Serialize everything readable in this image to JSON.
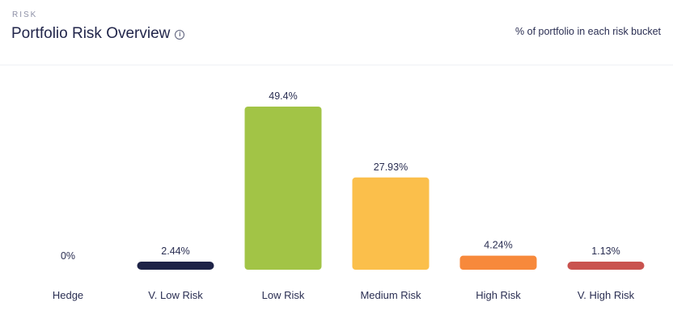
{
  "header": {
    "eyebrow": "RISK",
    "title": "Portfolio Risk Overview",
    "info_icon": "info-icon",
    "subtitle": "% of portfolio in each risk bucket"
  },
  "chart_data": {
    "type": "bar",
    "title": "",
    "xlabel": "",
    "ylabel": "",
    "ylim": [
      0,
      49.4
    ],
    "grid": false,
    "categories": [
      "Hedge",
      "V. Low Risk",
      "Low Risk",
      "Medium Risk",
      "High Risk",
      "V. High Risk"
    ],
    "values": [
      0,
      2.44,
      49.4,
      27.93,
      4.24,
      1.13
    ],
    "data_labels": [
      "0%",
      "2.44%",
      "49.4%",
      "27.93%",
      "4.24%",
      "1.13%"
    ],
    "colors": [
      "#1e2347",
      "#1e2347",
      "#a2c446",
      "#fbbf4b",
      "#f7893b",
      "#c9534f"
    ]
  }
}
